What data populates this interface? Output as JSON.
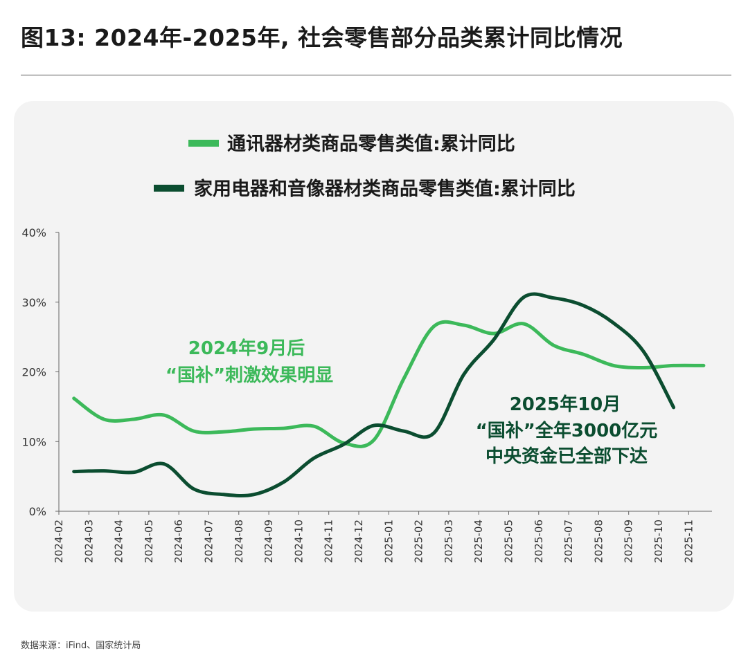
{
  "title": "图13: 2024年-2025年, 社会零售部分品类累计同比情况",
  "source": "数据来源：iFind、国家统计局",
  "annotations": {
    "left_line1": "2024年9月后",
    "left_line2": "“国补”刺激效果明显",
    "right_line1": "2025年10月",
    "right_line2": "“国补”全年3000亿元",
    "right_line3": "中央资金已全部下达"
  },
  "colors": {
    "light_green": "#3cb95a",
    "dark_green": "#0b4d30"
  },
  "chart_data": {
    "type": "line",
    "legend_position": "top-center",
    "grid": false,
    "ylim": [
      0,
      40
    ],
    "y_ticks": [
      "0%",
      "10%",
      "20%",
      "30%",
      "40%"
    ],
    "categories": [
      "2024-02",
      "2024-03",
      "2024-04",
      "2024-05",
      "2024-06",
      "2024-07",
      "2024-08",
      "2024-09",
      "2024-10",
      "2024-11",
      "2024-12",
      "2025-01",
      "2025-02",
      "2025-03",
      "2025-04",
      "2025-05",
      "2025-06",
      "2025-07",
      "2025-08",
      "2025-09",
      "2025-10",
      "2025-11"
    ],
    "series": [
      {
        "name": "通讯器材类商品零售类值:累计同比",
        "color": "#3cb95a",
        "points": [
          [
            "2024-02",
            16.2
          ],
          [
            "2024-03",
            13.2
          ],
          [
            "2024-04",
            13.2
          ],
          [
            "2024-05",
            13.8
          ],
          [
            "2024-06",
            11.5
          ],
          [
            "2024-07",
            11.4
          ],
          [
            "2024-08",
            11.8
          ],
          [
            "2024-09",
            11.9
          ],
          [
            "2024-10",
            12.2
          ],
          [
            "2024-11",
            9.8
          ],
          [
            "2024-12",
            10.2
          ],
          [
            "2025-01",
            19.0
          ],
          [
            "2025-02",
            26.5
          ],
          [
            "2025-03",
            26.7
          ],
          [
            "2025-04",
            25.5
          ],
          [
            "2025-05",
            26.9
          ],
          [
            "2025-06",
            23.8
          ],
          [
            "2025-07",
            22.5
          ],
          [
            "2025-08",
            20.9
          ],
          [
            "2025-09",
            20.6
          ],
          [
            "2025-10",
            20.9
          ],
          [
            "2025-11",
            20.9
          ]
        ]
      },
      {
        "name": "家用电器和音像器材类商品零售类值:累计同比",
        "color": "#0b4d30",
        "points": [
          [
            "2024-02",
            5.7
          ],
          [
            "2024-03",
            5.8
          ],
          [
            "2024-04",
            5.6
          ],
          [
            "2024-05",
            6.8
          ],
          [
            "2024-06",
            3.2
          ],
          [
            "2024-07",
            2.4
          ],
          [
            "2024-08",
            2.4
          ],
          [
            "2024-09",
            4.2
          ],
          [
            "2024-10",
            7.6
          ],
          [
            "2024-11",
            9.6
          ],
          [
            "2024-12",
            12.3
          ],
          [
            "2025-01",
            11.5
          ],
          [
            "2025-02",
            11.2
          ],
          [
            "2025-03",
            19.6
          ],
          [
            "2025-04",
            24.6
          ],
          [
            "2025-05",
            30.7
          ],
          [
            "2025-06",
            30.6
          ],
          [
            "2025-07",
            29.5
          ],
          [
            "2025-08",
            27.0
          ],
          [
            "2025-09",
            22.9
          ],
          [
            "2025-10",
            14.9
          ]
        ]
      }
    ]
  }
}
